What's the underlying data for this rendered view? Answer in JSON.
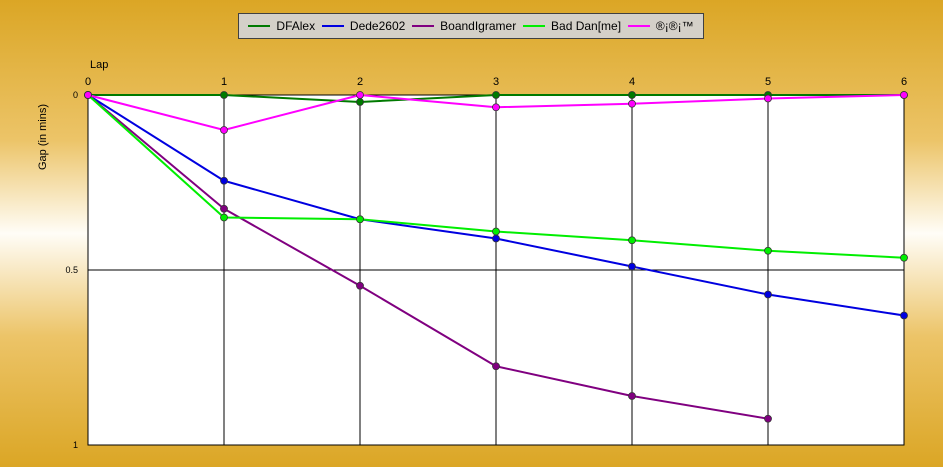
{
  "colors": {
    "grid": "#000000",
    "plot_background": "#ffffff"
  },
  "chart_data": {
    "type": "line",
    "title": "",
    "xlabel": "Lap",
    "ylabel": "Gap (in mins)",
    "x": [
      0,
      1,
      2,
      3,
      4,
      5,
      6
    ],
    "x_ticks": [
      "0",
      "1",
      "2",
      "3",
      "4",
      "5",
      "6"
    ],
    "y_ticks": [
      "0",
      "0.5",
      "1"
    ],
    "ylim": [
      0,
      1
    ],
    "y_inverted": true,
    "grid": true,
    "legend_position": "top-center",
    "series": [
      {
        "name": "DFAlex",
        "color": "#007a00",
        "values": [
          0,
          0,
          0.02,
          0,
          0,
          0,
          0
        ]
      },
      {
        "name": "Dede2602",
        "color": "#0000e0",
        "values": [
          0,
          0.245,
          0.355,
          0.41,
          0.49,
          0.57,
          0.63
        ]
      },
      {
        "name": "BoandIgramer",
        "color": "#800080",
        "values": [
          0,
          0.325,
          0.545,
          0.775,
          0.86,
          0.925,
          null
        ]
      },
      {
        "name": "Bad Dan[me]",
        "color": "#00ee00",
        "values": [
          0,
          0.35,
          0.355,
          0.39,
          0.415,
          0.445,
          0.465
        ]
      },
      {
        "name": "®¡®¡™",
        "color": "#ff00ff",
        "values": [
          0,
          0.1,
          0,
          0.035,
          0.025,
          0.01,
          0
        ]
      }
    ]
  }
}
